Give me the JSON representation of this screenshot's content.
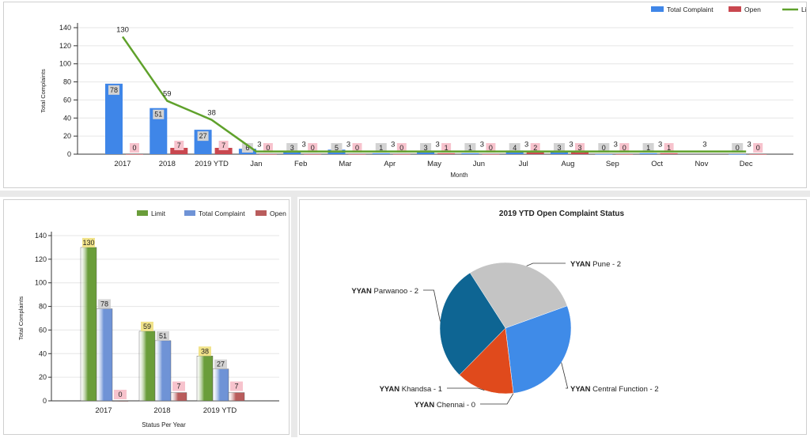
{
  "top_chart": {
    "chart_data": {
      "type": "bar",
      "categories": [
        "2017",
        "2018",
        "2019 YTD",
        "Jan",
        "Feb",
        "Mar",
        "Apr",
        "May",
        "Jun",
        "Jul",
        "Aug",
        "Sep",
        "Oct",
        "Nov",
        "Dec"
      ],
      "series": [
        {
          "name": "Total Complaint",
          "values": [
            78,
            51,
            27,
            6,
            3,
            5,
            1,
            3,
            1,
            4,
            3,
            0,
            1,
            null,
            0
          ],
          "color": "#3f86e8"
        },
        {
          "name": "Open",
          "values": [
            0,
            7,
            7,
            0,
            0,
            0,
            0,
            1,
            0,
            2,
            3,
            0,
            1,
            null,
            0
          ],
          "color": "#c9474f"
        },
        {
          "name": "Limit",
          "type": "line",
          "values": [
            130,
            59,
            38,
            3,
            3,
            3,
            3,
            3,
            3,
            3,
            3,
            3,
            3,
            3,
            3
          ],
          "color": "#5fa12b"
        }
      ],
      "xlabel": "Month",
      "ylabel": "Total Complaints",
      "ylim": [
        0,
        140
      ],
      "yticks": [
        0,
        20,
        40,
        60,
        80,
        100,
        120,
        140
      ],
      "grid": true,
      "legend": "top-right"
    }
  },
  "left_chart": {
    "chart_data": {
      "type": "bar",
      "categories": [
        "2017",
        "2018",
        "2019 YTD"
      ],
      "series": [
        {
          "name": "Limit",
          "values": [
            130,
            59,
            38
          ],
          "color": "#6a9d3a"
        },
        {
          "name": "Total Complaint",
          "values": [
            78,
            51,
            27
          ],
          "color": "#6f93d6"
        },
        {
          "name": "Open",
          "values": [
            0,
            7,
            7
          ],
          "color": "#b95c5c"
        }
      ],
      "xlabel": "Status Per Year",
      "ylabel": "Total Complaints",
      "ylim": [
        0,
        140
      ],
      "yticks": [
        0,
        20,
        40,
        60,
        80,
        100,
        120,
        140
      ],
      "grid": true,
      "legend": "top-right"
    }
  },
  "right_chart": {
    "chart_data": {
      "type": "pie",
      "title": "2019 YTD Open Complaint Status",
      "slices": [
        {
          "name": "Pune - 2",
          "prefix": "YYAN",
          "value": 2,
          "color": "#c4c4c4"
        },
        {
          "name": "Central Function - 2",
          "prefix": "YYAN",
          "value": 2,
          "color": "#3f8be8"
        },
        {
          "name": "Chennai - 0",
          "prefix": "YYAN",
          "value": 0,
          "color": "#e0e0e0"
        },
        {
          "name": "Khandsa - 1",
          "prefix": "YYAN",
          "value": 1,
          "color": "#e04a1c"
        },
        {
          "name": "Parwanoo - 2",
          "prefix": "YYAN",
          "value": 2,
          "color": "#0e6593"
        }
      ]
    }
  }
}
